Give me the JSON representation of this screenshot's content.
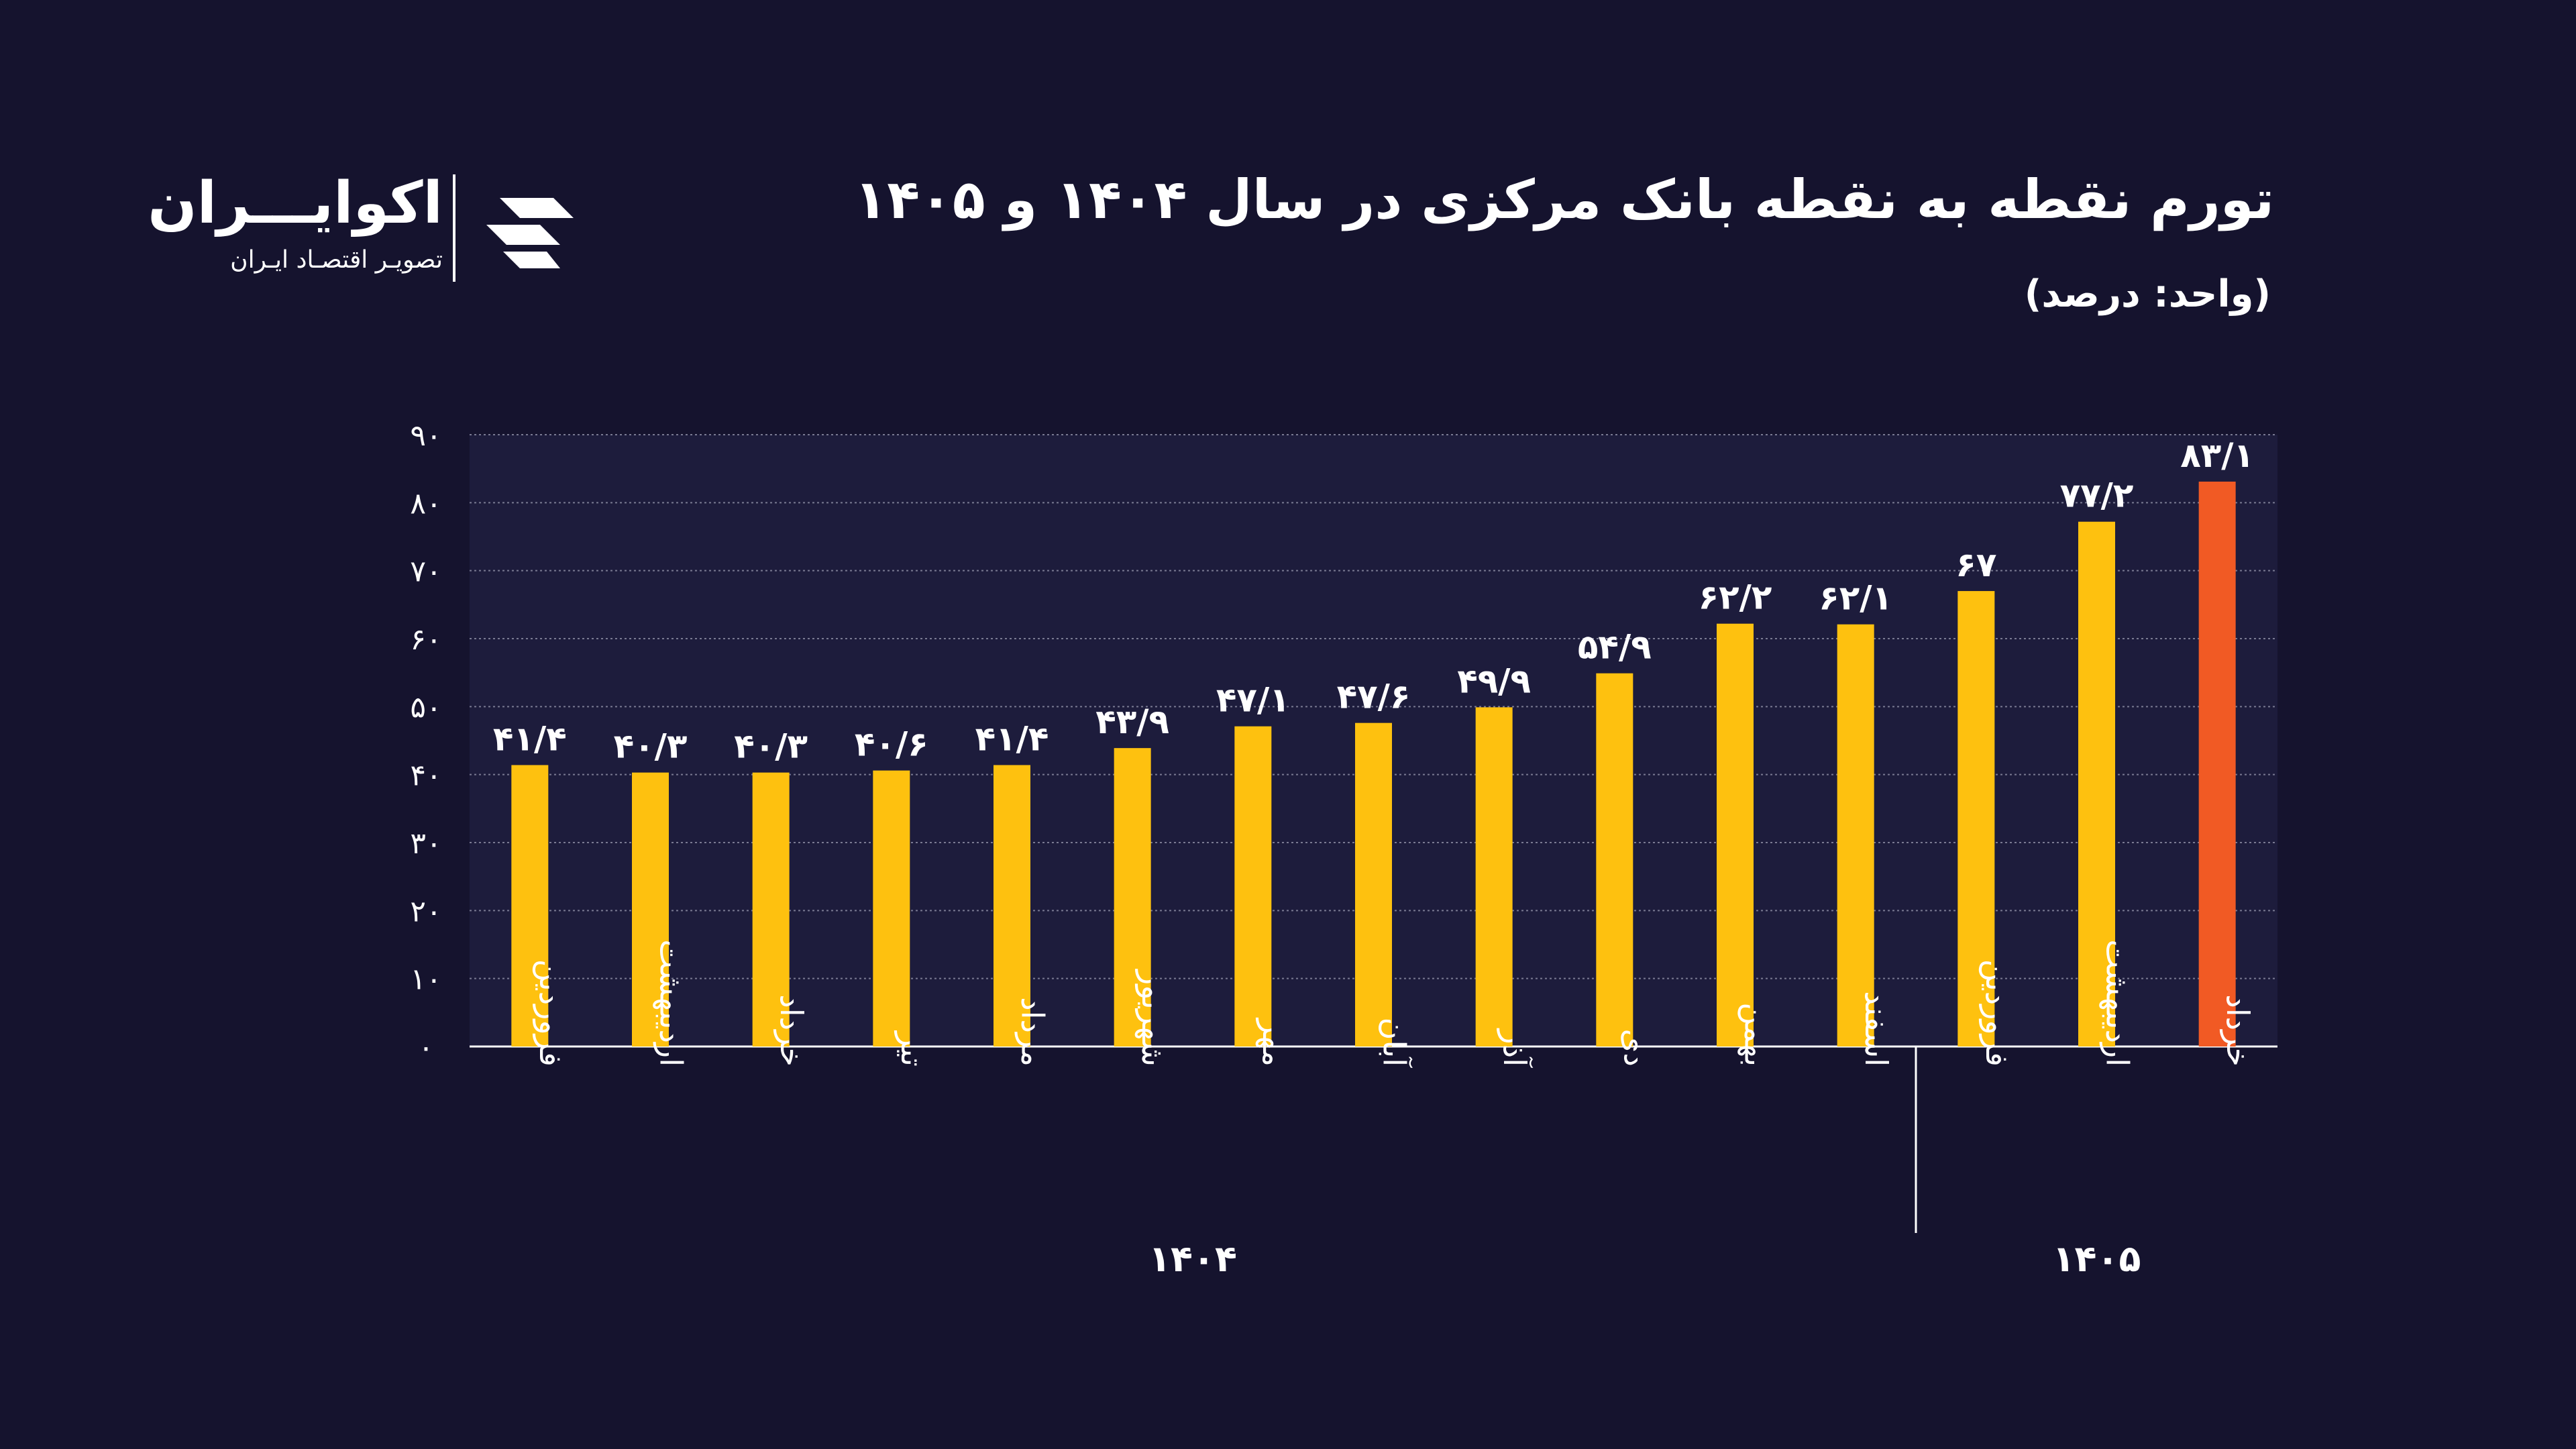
{
  "header": {
    "title": "تورم نقطه به نقطه بانک مرکزی در سال ۱۴۰۴ و ۱۴۰۵",
    "unit": "(واحد: درصد)"
  },
  "brand": {
    "name": "اکوایـــران",
    "tagline": "تصویـر اقتصـاد ایـران"
  },
  "colors": {
    "background": "#15132e",
    "bar": "#fec10f",
    "highlight": "#f15a24",
    "grid": "#7a7a92",
    "text": "#ffffff"
  },
  "chart_data": {
    "type": "bar",
    "ylim": [
      0,
      90
    ],
    "yticks": [
      {
        "value": 0,
        "label": "۰"
      },
      {
        "value": 10,
        "label": "۱۰"
      },
      {
        "value": 20,
        "label": "۲۰"
      },
      {
        "value": 30,
        "label": "۳۰"
      },
      {
        "value": 40,
        "label": "۴۰"
      },
      {
        "value": 50,
        "label": "۵۰"
      },
      {
        "value": 60,
        "label": "۶۰"
      },
      {
        "value": 70,
        "label": "۷۰"
      },
      {
        "value": 80,
        "label": "۸۰"
      },
      {
        "value": 90,
        "label": "۹۰"
      }
    ],
    "grid": true,
    "categories": [
      "فروردین",
      "اردیبهشت",
      "خرداد",
      "تیر",
      "مرداد",
      "شهریور",
      "مهر",
      "آبان",
      "آذر",
      "دی",
      "بهمن",
      "اسفند",
      "فروردین",
      "اردیبهشت",
      "خرداد"
    ],
    "values": [
      41.4,
      40.3,
      40.3,
      40.6,
      41.4,
      43.9,
      47.1,
      47.6,
      49.9,
      54.9,
      62.2,
      62.1,
      67,
      77.2,
      83.1
    ],
    "value_labels": [
      "۴۱/۴",
      "۴۰/۳",
      "۴۰/۳",
      "۴۰/۶",
      "۴۱/۴",
      "۴۳/۹",
      "۴۷/۱",
      "۴۷/۶",
      "۴۹/۹",
      "۵۴/۹",
      "۶۲/۲",
      "۶۲/۱",
      "۶۷",
      "۷۷/۲",
      "۸۳/۱"
    ],
    "highlight_index": 14,
    "groups": [
      {
        "label": "۱۴۰۴",
        "start": 0,
        "end": 11
      },
      {
        "label": "۱۴۰۵",
        "start": 12,
        "end": 14
      }
    ]
  }
}
